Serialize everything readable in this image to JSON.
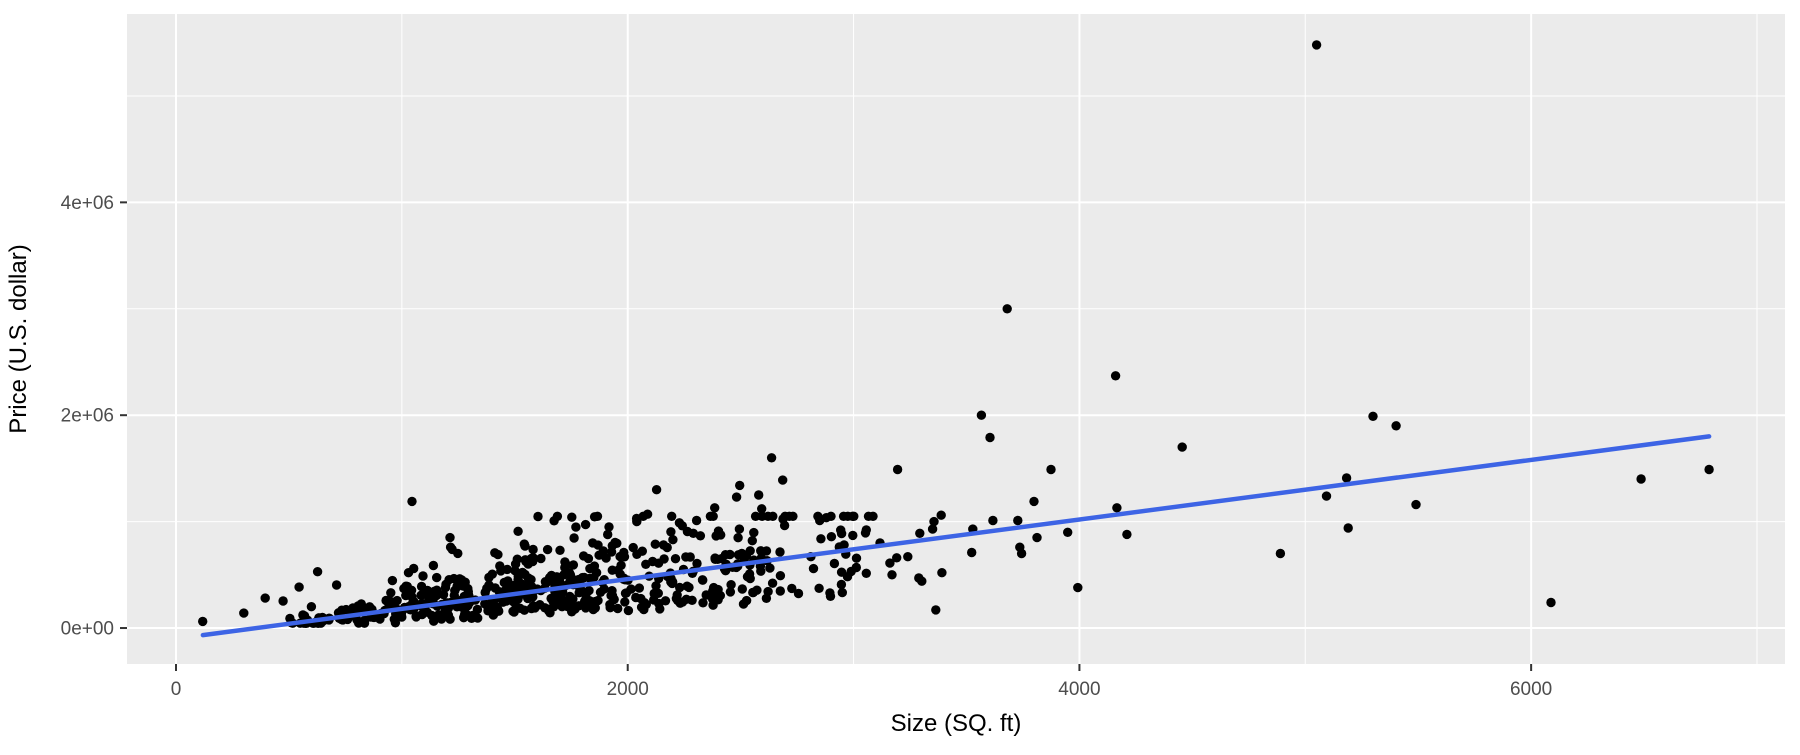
{
  "chart_data": {
    "type": "scatter",
    "title": "",
    "xlabel": "Size (SQ. ft)",
    "ylabel": "Price (U.S. dollar)",
    "legend": "none",
    "grid": true,
    "xlim": [
      -217,
      7124
    ],
    "ylim": [
      -338000,
      5770000
    ],
    "x_ticks": [
      {
        "value": 0,
        "label": "0"
      },
      {
        "value": 2000,
        "label": "2000"
      },
      {
        "value": 4000,
        "label": "4000"
      },
      {
        "value": 6000,
        "label": "6000"
      }
    ],
    "y_ticks": [
      {
        "value": 0,
        "label": "0e+00"
      },
      {
        "value": 2000000,
        "label": "2e+06"
      },
      {
        "value": 4000000,
        "label": "4e+06"
      }
    ],
    "x_minor": [
      1000,
      3000,
      5000,
      7000
    ],
    "y_minor": [
      1000000,
      3000000,
      5000000
    ],
    "colors": {
      "panel_bg": "#EBEBEB",
      "grid": "#FFFFFF",
      "point": "#000000",
      "tick_mark": "#333333",
      "tick_label": "#4D4D4D",
      "axis_title": "#000000",
      "smooth_line": "#3D64E5"
    },
    "point_radius": 4.7,
    "smooth_line": {
      "slope": 280,
      "intercept": -100000,
      "x_start": 119,
      "x_end": 6788,
      "width": 4.5
    },
    "points_notable": [
      [
        118,
        62000
      ],
      [
        300,
        140000
      ],
      [
        395,
        281000
      ],
      [
        474,
        254000
      ],
      [
        545,
        385000
      ],
      [
        562,
        122000
      ],
      [
        627,
        529000
      ],
      [
        711,
        404000
      ],
      [
        1045,
        1190000
      ],
      [
        1213,
        850000
      ],
      [
        1216,
        760000
      ],
      [
        1425,
        690000
      ],
      [
        1545,
        770000
      ],
      [
        1700,
        730000
      ],
      [
        1845,
        800000
      ],
      [
        1917,
        950000
      ],
      [
        2040,
        1000000
      ],
      [
        2088,
        1070000
      ],
      [
        2128,
        1300000
      ],
      [
        2200,
        830000
      ],
      [
        2305,
        1010000
      ],
      [
        2385,
        1130000
      ],
      [
        2482,
        1230000
      ],
      [
        2496,
        1340000
      ],
      [
        2580,
        1250000
      ],
      [
        2593,
        1120000
      ],
      [
        2637,
        1600000
      ],
      [
        2686,
        1390000
      ],
      [
        2850,
        1010000
      ],
      [
        2895,
        330000
      ],
      [
        3117,
        800000
      ],
      [
        3161,
        610000
      ],
      [
        3170,
        500000
      ],
      [
        3191,
        660000
      ],
      [
        3195,
        1490000
      ],
      [
        3240,
        670000
      ],
      [
        3289,
        470000
      ],
      [
        3293,
        890000
      ],
      [
        3302,
        440000
      ],
      [
        3350,
        930000
      ],
      [
        3356,
        1000000
      ],
      [
        3364,
        170000
      ],
      [
        3388,
        1060000
      ],
      [
        3391,
        520000
      ],
      [
        3523,
        710000
      ],
      [
        3528,
        930000
      ],
      [
        3566,
        2000000
      ],
      [
        3604,
        1790000
      ],
      [
        3617,
        1010000
      ],
      [
        3680,
        3000000
      ],
      [
        3727,
        1010000
      ],
      [
        3736,
        760000
      ],
      [
        3744,
        700000
      ],
      [
        3799,
        1190000
      ],
      [
        3812,
        850000
      ],
      [
        3874,
        1490000
      ],
      [
        3948,
        900000
      ],
      [
        3993,
        380000
      ],
      [
        4160,
        2370000
      ],
      [
        4166,
        1130000
      ],
      [
        4210,
        880000
      ],
      [
        4455,
        1700000
      ],
      [
        4890,
        700000
      ],
      [
        5050,
        5480000
      ],
      [
        5094,
        1240000
      ],
      [
        5183,
        1410000
      ],
      [
        5190,
        940000
      ],
      [
        5300,
        1990000
      ],
      [
        5402,
        1900000
      ],
      [
        5490,
        1160000
      ],
      [
        6088,
        240000
      ],
      [
        6487,
        1400000
      ],
      [
        6788,
        1490000
      ]
    ],
    "cloud": {
      "comment": "dense overlapping mass of house points, individually indiscernible; regenerated deterministically",
      "seed": 42,
      "bands": [
        {
          "x_min": 500,
          "x_max": 950,
          "n": 60
        },
        {
          "x_min": 950,
          "x_max": 1450,
          "n": 150
        },
        {
          "x_min": 1450,
          "x_max": 2000,
          "n": 180
        },
        {
          "x_min": 2000,
          "x_max": 2600,
          "n": 120
        },
        {
          "x_min": 2600,
          "x_max": 3100,
          "n": 50
        }
      ],
      "trend": {
        "slope": 280,
        "intercept": -100000,
        "base_min": 30000
      },
      "noise": {
        "p_low": 0.68,
        "low": [
          0.38,
          1.22
        ],
        "p_mid": 0.92,
        "mid": [
          1.22,
          1.9
        ],
        "high": [
          1.9,
          3.0
        ],
        "jitter": 30000,
        "y_floor": 45000,
        "y_cap": 1050000
      }
    }
  }
}
